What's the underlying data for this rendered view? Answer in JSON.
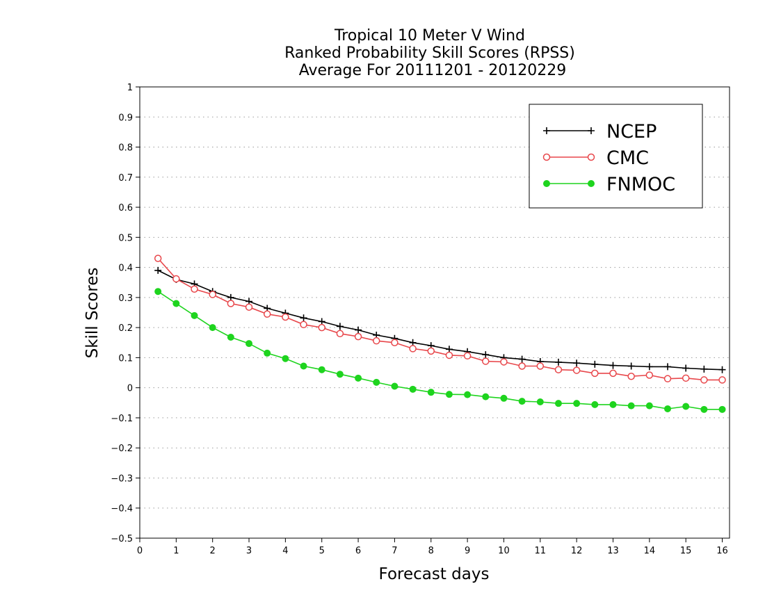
{
  "chart_data": {
    "type": "line",
    "title_lines": [
      "Tropical 10 Meter V Wind",
      "Ranked Probability Skill Scores (RPSS)",
      "Average For 20111201 - 20120229"
    ],
    "xlabel": "Forecast days",
    "ylabel": "Skill Scores",
    "xlim": [
      0,
      16.2
    ],
    "ylim": [
      -0.5,
      1
    ],
    "xticks": [
      0,
      1,
      2,
      3,
      4,
      5,
      6,
      7,
      8,
      9,
      10,
      11,
      12,
      13,
      14,
      15,
      16
    ],
    "yticks": [
      1,
      0.9,
      0.8,
      0.7,
      0.6,
      0.5,
      0.4,
      0.3,
      0.2,
      0.1,
      0,
      -0.1,
      -0.2,
      -0.3,
      -0.4,
      -0.5
    ],
    "ytick_labels": [
      "1",
      "0.9",
      "0.8",
      "0.7",
      "0.6",
      "0.5",
      "0.4",
      "0.3",
      "0.2",
      "0.1",
      "0",
      "−0.1",
      "−0.2",
      "−0.3",
      "−0.4",
      "−0.5"
    ],
    "grid": "horizontal-dotted",
    "legend_position": "top-right",
    "x": [
      0.5,
      1,
      1.5,
      2,
      2.5,
      3,
      3.5,
      4,
      4.5,
      5,
      5.5,
      6,
      6.5,
      7,
      7.5,
      8,
      8.5,
      9,
      9.5,
      10,
      10.5,
      11,
      11.5,
      12,
      12.5,
      13,
      13.5,
      14,
      14.5,
      15,
      15.5,
      16
    ],
    "series": [
      {
        "name": "NCEP",
        "color": "#000000",
        "marker": "plus",
        "values": [
          0.39,
          0.36,
          0.345,
          0.32,
          0.3,
          0.287,
          0.264,
          0.248,
          0.232,
          0.22,
          0.204,
          0.192,
          0.175,
          0.164,
          0.15,
          0.14,
          0.128,
          0.12,
          0.11,
          0.1,
          0.095,
          0.087,
          0.085,
          0.082,
          0.078,
          0.074,
          0.072,
          0.07,
          0.07,
          0.065,
          0.062,
          0.06
        ]
      },
      {
        "name": "CMC",
        "color": "#e8474b",
        "marker": "open-circle",
        "values": [
          0.43,
          0.362,
          0.328,
          0.31,
          0.28,
          0.268,
          0.245,
          0.235,
          0.21,
          0.2,
          0.18,
          0.17,
          0.156,
          0.15,
          0.13,
          0.122,
          0.108,
          0.106,
          0.088,
          0.086,
          0.072,
          0.072,
          0.06,
          0.058,
          0.048,
          0.048,
          0.038,
          0.042,
          0.03,
          0.032,
          0.026,
          0.026
        ]
      },
      {
        "name": "FNMOC",
        "color": "#1ed41e",
        "marker": "filled-circle",
        "values": [
          0.32,
          0.28,
          0.24,
          0.2,
          0.168,
          0.147,
          0.115,
          0.097,
          0.072,
          0.06,
          0.045,
          0.032,
          0.018,
          0.005,
          -0.005,
          -0.015,
          -0.022,
          -0.023,
          -0.03,
          -0.035,
          -0.045,
          -0.047,
          -0.052,
          -0.052,
          -0.056,
          -0.056,
          -0.06,
          -0.06,
          -0.07,
          -0.062,
          -0.072,
          -0.072
        ]
      }
    ]
  }
}
